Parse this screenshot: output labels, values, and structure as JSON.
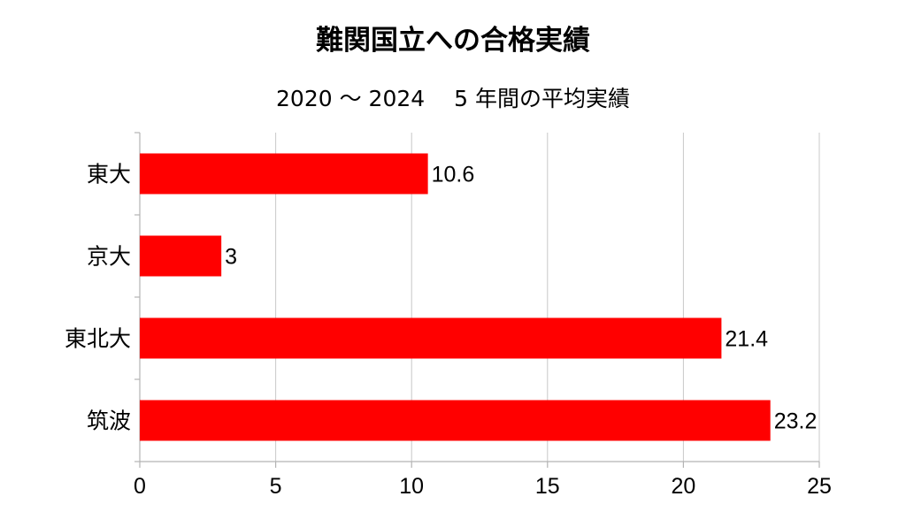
{
  "chart_data": {
    "type": "bar",
    "orientation": "horizontal",
    "title": "難関国立への合格実績",
    "subtitle": "2020 〜 2024　 5 年間の平均実績",
    "categories": [
      "東大",
      "京大",
      "東北大",
      "筑波"
    ],
    "values": [
      10.6,
      3,
      21.4,
      23.2
    ],
    "data_labels": [
      "10.6",
      "3",
      "21.4",
      "23.2"
    ],
    "xlim": [
      0,
      25
    ],
    "x_ticks": [
      0,
      5,
      10,
      15,
      20,
      25
    ],
    "x_tick_labels": [
      "0",
      "5",
      "10",
      "15",
      "20",
      "25"
    ],
    "grid": "vertical",
    "legend": "none",
    "bar_color": "#ff0000",
    "grid_color": "#c8c8c8"
  }
}
